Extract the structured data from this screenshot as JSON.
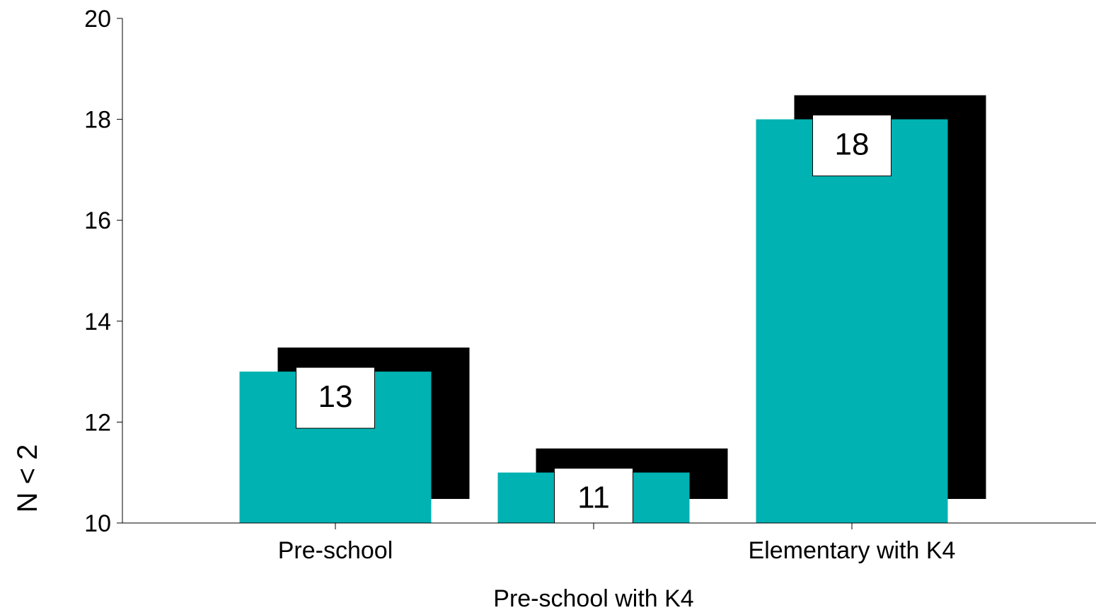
{
  "chart_data": {
    "type": "bar",
    "categories": [
      "Pre-school",
      "",
      "Elementary with K4"
    ],
    "values": [
      13,
      11,
      18
    ],
    "data_labels": [
      "13",
      "11",
      "18"
    ],
    "title": "",
    "xlabel": "Pre-school with K4",
    "ylabel": "N < 2",
    "ylim": [
      10,
      20
    ],
    "yticks": [
      "10",
      "12",
      "14",
      "16",
      "18",
      "20"
    ],
    "grid": false,
    "legend": "none",
    "bar_style": "3d-shadow",
    "colors": {
      "bar": "#00b2b2",
      "shadow": "#000000",
      "label_box": "#ffffff",
      "axis": "#000000"
    }
  }
}
